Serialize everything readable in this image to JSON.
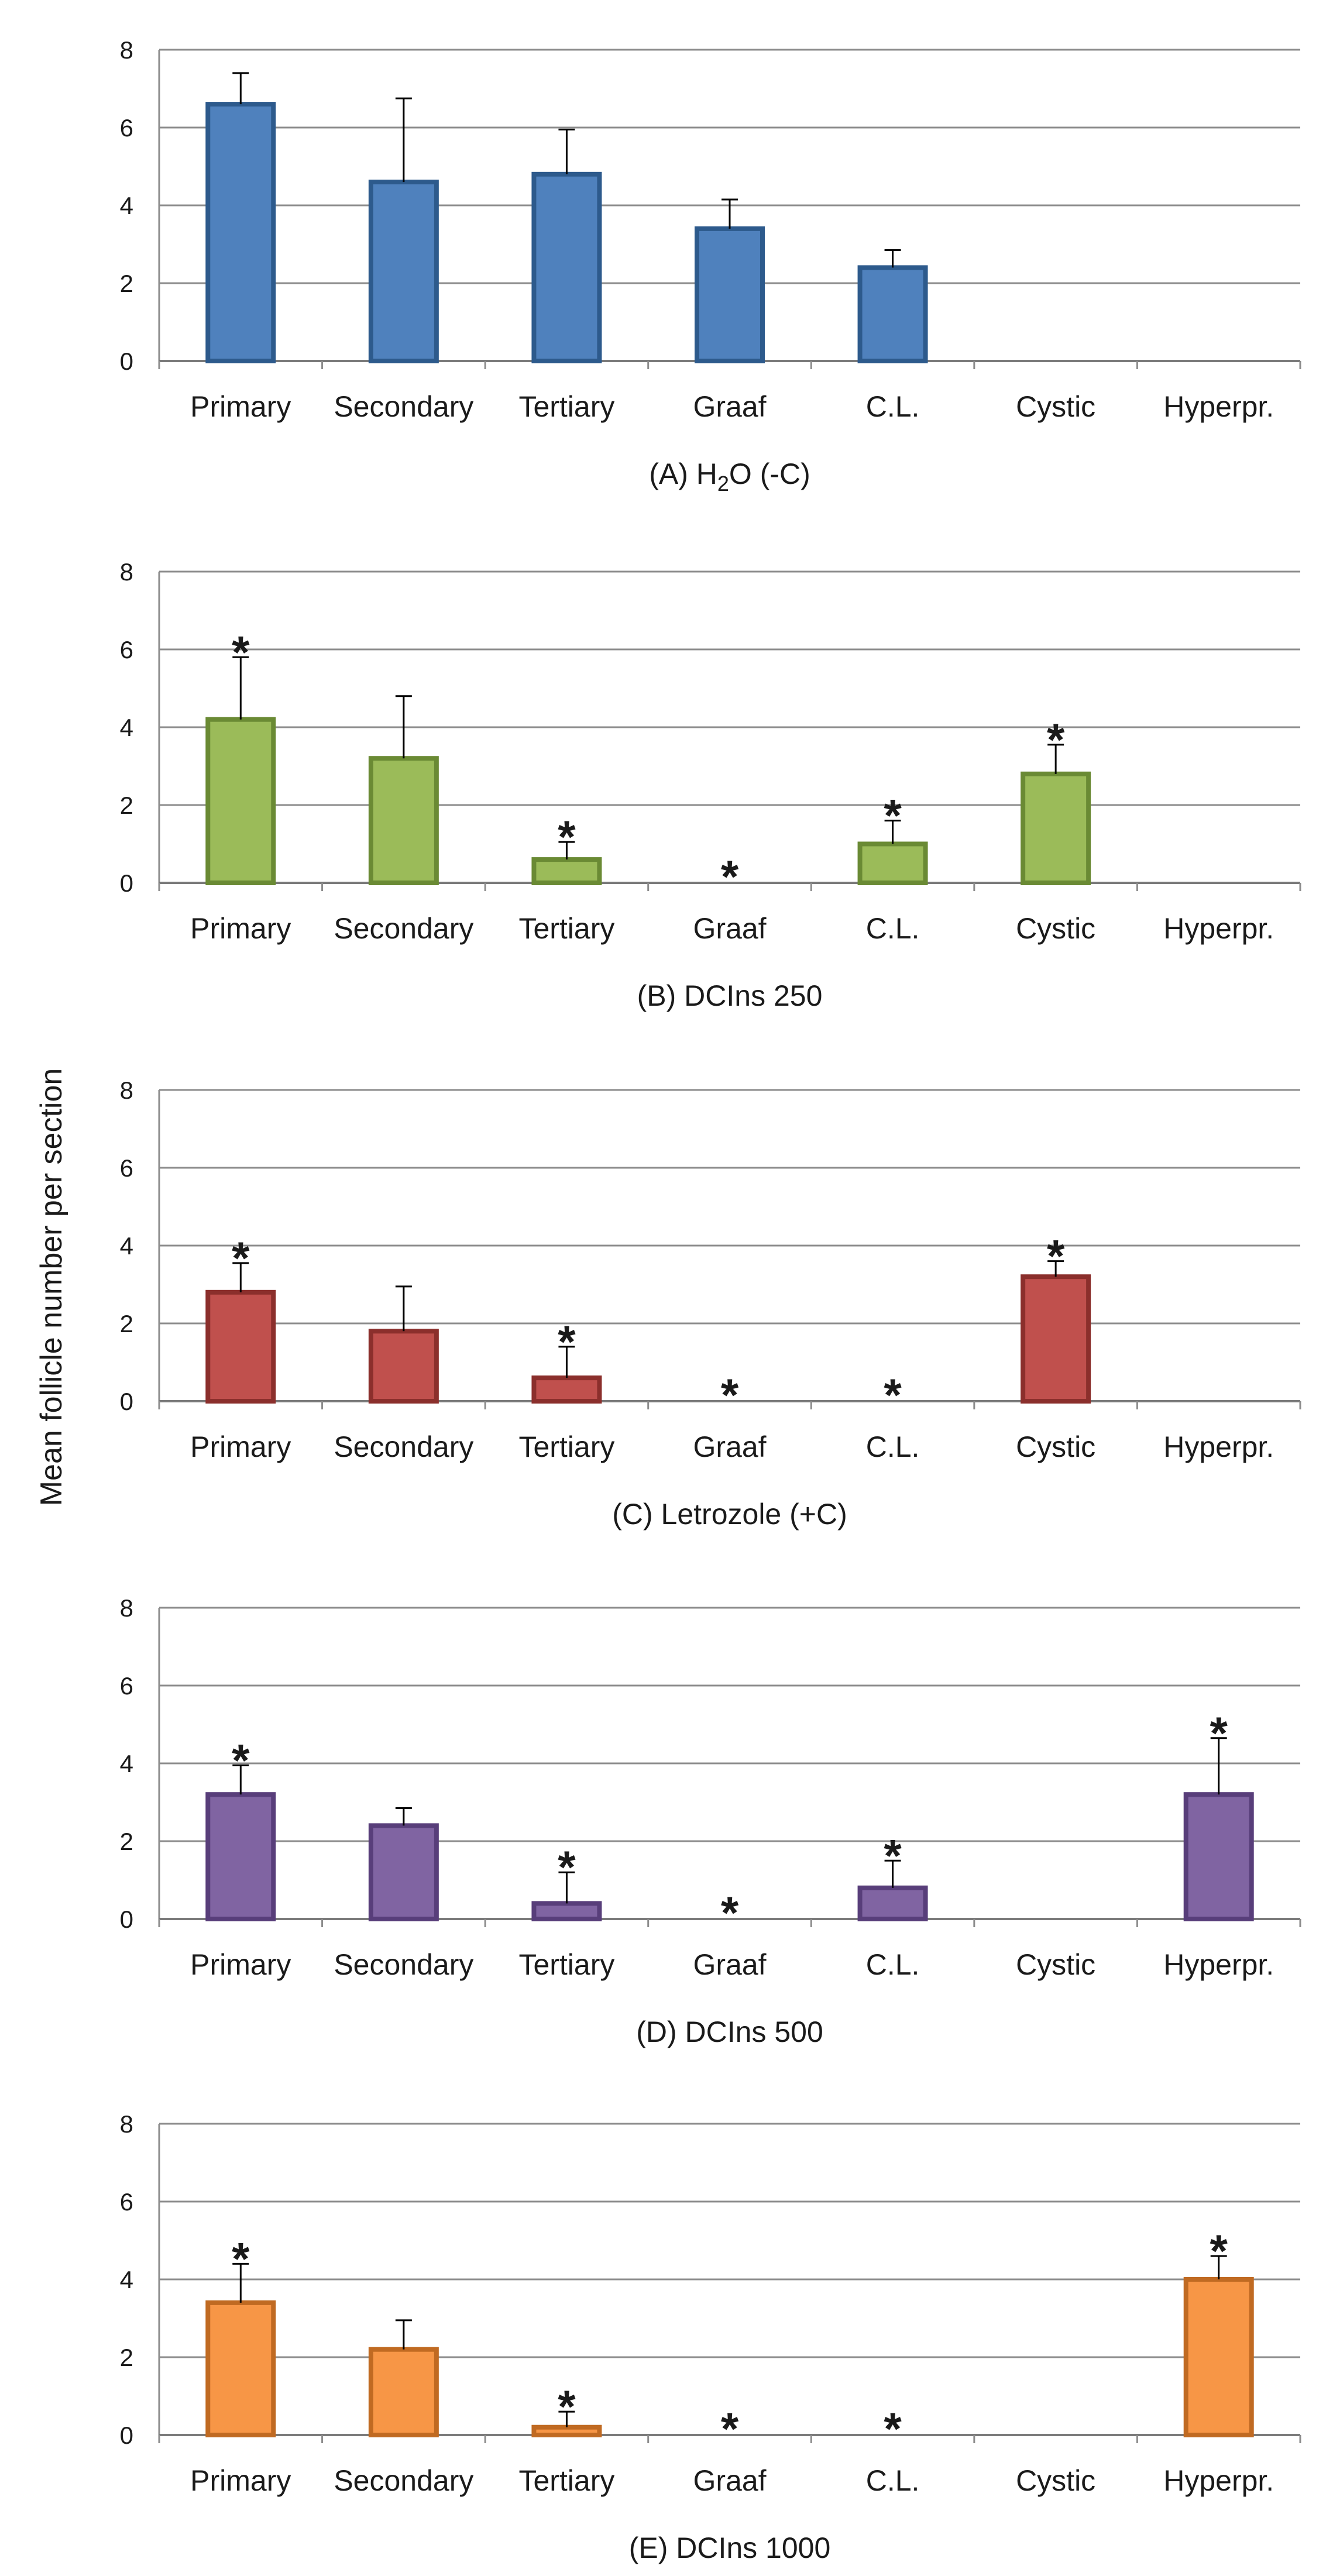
{
  "ylabel": "Mean follicle number per section",
  "colors": {
    "A": {
      "fill": "#4f81bd",
      "stroke": "#2d5a8c"
    },
    "B": {
      "fill": "#9bbb59",
      "stroke": "#6a8a34"
    },
    "C": {
      "fill": "#c0504d",
      "stroke": "#8b2f2c"
    },
    "D": {
      "fill": "#8064a2",
      "stroke": "#583e7a"
    },
    "E": {
      "fill": "#f79646",
      "stroke": "#c06a22"
    }
  },
  "chart_data": [
    {
      "type": "bar",
      "id": "A",
      "caption_pre": "(A) H",
      "caption_sub": "2",
      "caption_post": "O (-C)",
      "categories": [
        "Primary",
        "Secondary",
        "Tertiary",
        "Graaf",
        "C.L.",
        "Cystic",
        "Hyperpr."
      ],
      "values": [
        6.6,
        4.6,
        4.8,
        3.4,
        2.4,
        0,
        0
      ],
      "errors": [
        0.8,
        2.15,
        1.15,
        0.75,
        0.45,
        0,
        0
      ],
      "significant": [
        false,
        false,
        false,
        false,
        false,
        false,
        false
      ],
      "yticks": [
        "0",
        "2",
        "4",
        "6",
        "8"
      ],
      "ylim": [
        0,
        8
      ],
      "grid": true
    },
    {
      "type": "bar",
      "id": "B",
      "caption": "(B) DCIns 250",
      "categories": [
        "Primary",
        "Secondary",
        "Tertiary",
        "Graaf",
        "C.L.",
        "Cystic",
        "Hyperpr."
      ],
      "values": [
        4.2,
        3.2,
        0.6,
        0,
        1.0,
        2.8,
        0
      ],
      "errors": [
        1.6,
        1.6,
        0.45,
        0,
        0.6,
        0.75,
        0
      ],
      "significant": [
        true,
        false,
        true,
        true,
        true,
        true,
        false
      ],
      "yticks": [
        "0",
        "2",
        "4",
        "6",
        "8"
      ],
      "ylim": [
        0,
        8
      ],
      "grid": true
    },
    {
      "type": "bar",
      "id": "C",
      "caption": "(C) Letrozole (+C)",
      "categories": [
        "Primary",
        "Secondary",
        "Tertiary",
        "Graaf",
        "C.L.",
        "Cystic",
        "Hyperpr."
      ],
      "values": [
        2.8,
        1.8,
        0.6,
        0,
        0,
        3.2,
        0
      ],
      "errors": [
        0.75,
        1.15,
        0.8,
        0,
        0,
        0.4,
        0
      ],
      "significant": [
        true,
        false,
        true,
        true,
        true,
        true,
        false
      ],
      "yticks": [
        "0",
        "2",
        "4",
        "6",
        "8"
      ],
      "ylim": [
        0,
        8
      ],
      "grid": true
    },
    {
      "type": "bar",
      "id": "D",
      "caption": "(D) DCIns 500",
      "categories": [
        "Primary",
        "Secondary",
        "Tertiary",
        "Graaf",
        "C.L.",
        "Cystic",
        "Hyperpr."
      ],
      "values": [
        3.2,
        2.4,
        0.4,
        0,
        0.8,
        0,
        3.2
      ],
      "errors": [
        0.75,
        0.45,
        0.8,
        0,
        0.7,
        0,
        1.45
      ],
      "significant": [
        true,
        false,
        true,
        true,
        true,
        false,
        true
      ],
      "yticks": [
        "0",
        "2",
        "4",
        "6",
        "8"
      ],
      "ylim": [
        0,
        8
      ],
      "grid": true
    },
    {
      "type": "bar",
      "id": "E",
      "caption": "(E) DCIns 1000",
      "categories": [
        "Primary",
        "Secondary",
        "Tertiary",
        "Graaf",
        "C.L.",
        "Cystic",
        "Hyperpr."
      ],
      "values": [
        3.4,
        2.2,
        0.2,
        0,
        0,
        0,
        4.0
      ],
      "errors": [
        1.0,
        0.75,
        0.4,
        0,
        0,
        0,
        0.6
      ],
      "significant": [
        true,
        false,
        true,
        true,
        true,
        false,
        true
      ],
      "yticks": [
        "0",
        "2",
        "4",
        "6",
        "8"
      ],
      "ylim": [
        0,
        8
      ],
      "grid": true
    }
  ]
}
